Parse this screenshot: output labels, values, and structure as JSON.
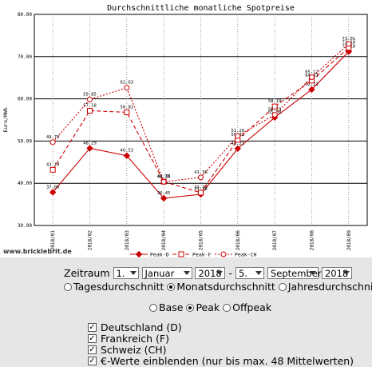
{
  "chart_data": {
    "type": "line",
    "title": "Durchschnittliche monatliche Spotpreise",
    "ylabel": "Euro/MWh",
    "xlabel": "",
    "ylim": [
      30,
      80
    ],
    "yticks": [
      "30.00",
      "40.00",
      "50.00",
      "60.00",
      "70.00",
      "80.00"
    ],
    "categories": [
      "2018/01",
      "2018/02",
      "2018/03",
      "2018/04",
      "2018/05",
      "2018/06",
      "2018/07",
      "2018/08",
      "2018/09"
    ],
    "legend_position": "bottom",
    "grid": true,
    "series": [
      {
        "name": "Peak-D",
        "color": "#cc0000",
        "dash": "solid",
        "marker": "diamond",
        "values": [
          37.86,
          48.29,
          46.53,
          36.45,
          37.38,
          48.21,
          55.58,
          62.21,
          71.18
        ],
        "labels": [
          "37.86",
          "48.29",
          "46.53",
          "36.45",
          "37.38",
          "48.21",
          "55.58",
          "62.21",
          "71.18"
        ]
      },
      {
        "name": "Peak-F",
        "color": "#cc0000",
        "dash": "5,3",
        "marker": "square",
        "values": [
          43.19,
          57.18,
          56.81,
          40.38,
          37.77,
          50.31,
          58.19,
          64.31,
          72.1
        ],
        "labels": [
          "43.19",
          "57.18",
          "56.81",
          "40.38",
          "37.77",
          "50.31",
          "58.19",
          "64.31",
          "72.10"
        ]
      },
      {
        "name": "Peak-CH",
        "color": "#cc0000",
        "dash": "2,2",
        "marker": "circle",
        "values": [
          49.73,
          59.85,
          62.63,
          40.36,
          41.39,
          51.2,
          56.23,
          65.12,
          73.01
        ],
        "labels": [
          "49.73",
          "59.85",
          "62.63",
          "40.36",
          "41.39",
          "51.20",
          "56.23",
          "65.12",
          "73.01"
        ]
      }
    ]
  },
  "watermark": "www.bricklebrit.de",
  "controls": {
    "zeitraum_label": "Zeitraum",
    "dash": "-",
    "from_day": "1.",
    "from_month": "Januar",
    "from_year": "2018",
    "to_day": "5.",
    "to_month": "September",
    "to_year": "2018",
    "aggregation": [
      {
        "label": "Tagesdurchschnitt",
        "selected": false
      },
      {
        "label": "Monatsdurchschnitt",
        "selected": true
      },
      {
        "label": "Jahresdurchschnitt",
        "selected": false
      }
    ],
    "load": [
      {
        "label": "Base",
        "selected": false
      },
      {
        "label": "Peak",
        "selected": true
      },
      {
        "label": "Offpeak",
        "selected": false
      }
    ],
    "checks": [
      {
        "label": "Deutschland (D)",
        "checked": true
      },
      {
        "label": "Frankreich (F)",
        "checked": true
      },
      {
        "label": "Schweiz (CH)",
        "checked": true
      },
      {
        "label": "€-Werte einblenden (nur bis max. 48 Mittelwerten)",
        "checked": true
      }
    ]
  }
}
